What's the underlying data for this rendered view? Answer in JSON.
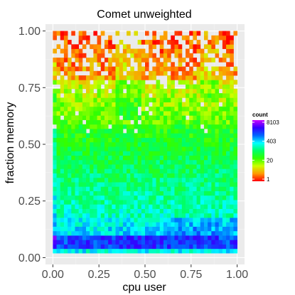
{
  "chart_data": {
    "type": "heatmap",
    "title": "Comet  unweighted",
    "xlabel": "cpu user",
    "ylabel": "fraction memory",
    "xlim": [
      -0.04,
      1.04
    ],
    "ylim": [
      -0.03,
      1.03
    ],
    "x_ticks": [
      0.0,
      0.25,
      0.5,
      0.75,
      1.0
    ],
    "x_tick_labels": [
      "0.00",
      "0.25",
      "0.50",
      "0.75",
      "1.00"
    ],
    "y_ticks": [
      0.0,
      0.25,
      0.5,
      0.75,
      1.0
    ],
    "y_tick_labels": [
      "0.00",
      "0.25",
      "0.50",
      "0.75",
      "1.00"
    ],
    "grid": true,
    "panel_background": "#ebebeb",
    "color_scale": {
      "title": "count",
      "log_scale": true,
      "min": 1,
      "max": 8103,
      "breaks": [
        8103,
        403,
        20,
        1
      ],
      "break_labels": [
        "8103",
        "403",
        "20",
        "1"
      ],
      "colors": [
        "#ff0000",
        "#ff9900",
        "#ccff00",
        "#33ff00",
        "#00ff66",
        "#00ffff",
        "#0066ff",
        "#3300ff",
        "#cc00ff"
      ]
    },
    "legend_position": "right",
    "bins": {
      "nx": 50,
      "ny": 50,
      "x_range": [
        0.0,
        1.0
      ],
      "y_range": [
        0.02,
        1.0
      ]
    }
  }
}
